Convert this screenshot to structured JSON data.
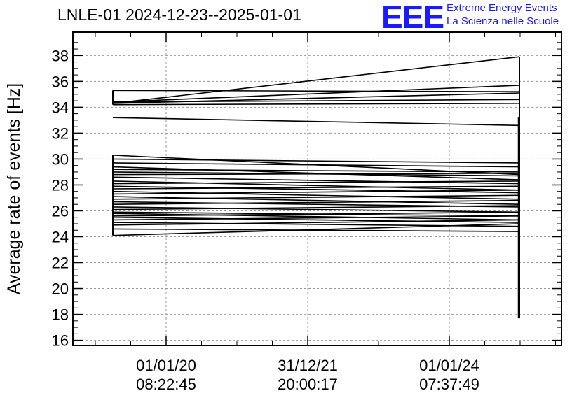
{
  "header": {
    "title": "LNLE-01 2024-12-23--2025-01-01",
    "logo_text": "EEE",
    "logo_line1": "Extreme Energy Events",
    "logo_line2": "La Scienza nelle Scuole",
    "logo_color": "#1a1aff"
  },
  "chart_data": {
    "type": "line",
    "title": "LNLE-01 2024-12-23--2025-01-01",
    "xlabel": "",
    "ylabel": "Average rate of events [Hz]",
    "ylim": [
      15.6,
      39.8
    ],
    "yticks": [
      16,
      18,
      20,
      22,
      24,
      26,
      28,
      30,
      32,
      34,
      36,
      38
    ],
    "xticks": [
      {
        "label_date": "01/01/20",
        "label_time": "08:22:45"
      },
      {
        "label_date": "31/12/21",
        "label_time": "20:00:17"
      },
      {
        "label_date": "01/01/24",
        "label_time": "07:37:49"
      }
    ],
    "grid": true,
    "line_color": "#000000",
    "segments_start_end": [
      [
        35.3,
        35.2
      ],
      [
        34.3,
        37.9
      ],
      [
        34.4,
        35.7
      ],
      [
        34.3,
        35.1
      ],
      [
        34.4,
        34.6
      ],
      [
        34.2,
        34.3
      ],
      [
        33.2,
        32.6
      ],
      [
        30.3,
        28.8
      ],
      [
        30.0,
        29.7
      ],
      [
        29.7,
        29.4
      ],
      [
        29.4,
        28.4
      ],
      [
        29.2,
        29.0
      ],
      [
        29.0,
        28.7
      ],
      [
        28.8,
        28.9
      ],
      [
        28.6,
        28.1
      ],
      [
        28.3,
        27.6
      ],
      [
        28.1,
        28.3
      ],
      [
        27.9,
        27.4
      ],
      [
        27.7,
        27.9
      ],
      [
        27.5,
        26.9
      ],
      [
        27.3,
        27.6
      ],
      [
        27.1,
        26.5
      ],
      [
        26.9,
        27.2
      ],
      [
        26.7,
        26.3
      ],
      [
        26.5,
        26.8
      ],
      [
        26.3,
        25.9
      ],
      [
        26.1,
        26.4
      ],
      [
        25.9,
        25.6
      ],
      [
        25.8,
        25.3
      ],
      [
        25.6,
        25.9
      ],
      [
        25.5,
        25.1
      ],
      [
        25.3,
        25.6
      ],
      [
        25.1,
        24.8
      ],
      [
        24.9,
        25.3
      ],
      [
        24.6,
        24.4
      ],
      [
        24.1,
        25.0
      ]
    ],
    "final_drop": {
      "from": 33.2,
      "to": 17.7
    }
  }
}
